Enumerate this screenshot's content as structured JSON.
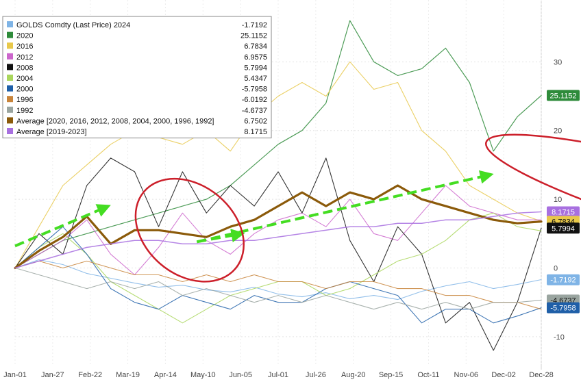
{
  "chart_data": {
    "type": "line",
    "title": "",
    "xlabel": "",
    "ylabel": "",
    "ylim": [
      -14,
      39
    ],
    "y_ticks": [
      30,
      20,
      10,
      0,
      -10
    ],
    "x_ticks": [
      "Jan-01",
      "Jan-27",
      "Feb-22",
      "Mar-19",
      "Apr-14",
      "May-10",
      "Jun-05",
      "Jul-01",
      "Jul-26",
      "Aug-20",
      "Sep-15",
      "Oct-11",
      "Nov-06",
      "Dec-02",
      "Dec-28"
    ],
    "grid": true,
    "legend_position": "top-left",
    "series": [
      {
        "name": "GOLDS Comdty (Last Price) 2024",
        "last": "-1.7192",
        "color": "#7fb4e6",
        "width": 1.1,
        "values": [
          0,
          1.2,
          0.5,
          -0.8,
          -1.5,
          -2.2,
          -2.8,
          -2.5,
          -3.2,
          -3.5,
          -2.8,
          -3.8,
          -4.2,
          -3.6,
          -4.5,
          -4.0,
          -4.6,
          -3.4,
          -2.6,
          -2.0,
          -3.0,
          -2.4,
          -1.7
        ]
      },
      {
        "name": "2020",
        "last": "25.1152",
        "color": "#2e8b3a",
        "width": 1.2,
        "values": [
          0,
          2,
          4,
          5,
          6,
          7,
          8,
          9,
          10,
          12,
          15,
          18,
          20,
          24,
          36,
          30,
          28,
          29,
          32,
          27,
          17,
          22,
          25.1
        ]
      },
      {
        "name": "2016",
        "last": "6.7834",
        "color": "#e8c84a",
        "width": 1.1,
        "values": [
          0,
          6,
          12,
          15,
          18,
          20,
          19,
          18,
          20,
          17,
          22,
          25,
          27,
          25,
          30,
          26,
          27,
          20,
          17,
          12,
          10,
          8,
          6.8
        ]
      },
      {
        "name": "2012",
        "last": "6.9575",
        "color": "#cc66cc",
        "width": 1.1,
        "values": [
          0,
          2,
          4,
          7,
          2,
          -1,
          3,
          8,
          4,
          2,
          5,
          7,
          8,
          6,
          10,
          5,
          4,
          8,
          12,
          9,
          8,
          7,
          7.0
        ]
      },
      {
        "name": "2008",
        "last": "5.7994",
        "color": "#111111",
        "width": 1.1,
        "values": [
          0,
          5,
          2,
          12,
          16,
          14,
          6,
          14,
          8,
          12,
          9,
          14,
          8,
          16,
          4,
          -2,
          6,
          2,
          -8,
          -5,
          -12,
          -5,
          5.8
        ]
      },
      {
        "name": "2004",
        "last": "5.4347",
        "color": "#a9d65c",
        "width": 1.1,
        "values": [
          0,
          3,
          5,
          2,
          -2,
          -4,
          -6,
          -8,
          -6,
          -4,
          -3,
          -2,
          -2,
          -4,
          -3,
          -1,
          1,
          2,
          4,
          7,
          8,
          6,
          5.4
        ]
      },
      {
        "name": "2000",
        "last": "-5.7958",
        "color": "#1f5fa8",
        "width": 1.1,
        "values": [
          0,
          3,
          6,
          2,
          -3,
          -5,
          -6,
          -4,
          -5,
          -6,
          -4,
          -5,
          -5,
          -3,
          -2,
          -3,
          -4,
          -8,
          -6,
          -6,
          -8,
          -7,
          -5.8
        ]
      },
      {
        "name": "1996",
        "last": "-6.0192",
        "color": "#c8843a",
        "width": 1.1,
        "values": [
          0,
          1,
          0,
          1,
          0,
          -1,
          -1,
          -2,
          -1,
          -2,
          -1,
          -2,
          -2,
          -3,
          -2,
          -2,
          -3,
          -3,
          -4,
          -4,
          -5,
          -5,
          -6.0
        ]
      },
      {
        "name": "1992",
        "last": "-4.6737",
        "color": "#9aa5a0",
        "width": 1.1,
        "values": [
          0,
          -1,
          -2,
          -3,
          -2,
          -3,
          -2,
          -4,
          -3,
          -4,
          -5,
          -4,
          -5,
          -4,
          -5,
          -6,
          -5,
          -6,
          -5,
          -6,
          -5,
          -5,
          -4.7
        ]
      },
      {
        "name": "Average  [2020, 2016, 2012, 2008, 2004, 2000, 1996, 1992]",
        "last": "6.7502",
        "color": "#8b5a0a",
        "width": 3.2,
        "values": [
          0,
          2.5,
          4.5,
          7.5,
          3.5,
          5.5,
          5.5,
          5,
          4.5,
          6,
          7,
          9,
          11,
          9,
          11,
          10,
          12,
          10,
          9,
          8,
          7,
          6.5,
          6.75
        ]
      },
      {
        "name": "Average  [2019-2023]",
        "last": "8.1715",
        "color": "#a870e0",
        "width": 1.5,
        "values": [
          0,
          1,
          2,
          3,
          3.5,
          4,
          4,
          3.5,
          3.5,
          4,
          4,
          4.5,
          5,
          5.5,
          6,
          6,
          6.5,
          6.5,
          7,
          7,
          7.5,
          8,
          8.17
        ]
      }
    ],
    "right_labels": [
      {
        "text": "25.1152",
        "value": 25.1152,
        "color": "#2e8b3a",
        "fg": "#ffffff"
      },
      {
        "text": "8.1715",
        "value": 8.1715,
        "color": "#a870e0",
        "fg": "#ffffff"
      },
      {
        "text": "6.7834",
        "value": 6.7834,
        "color": "#e8c84a",
        "fg": "#111111"
      },
      {
        "text": "5.7994",
        "value": 5.7994,
        "color": "#111111",
        "fg": "#ffffff"
      },
      {
        "text": "-1.7192",
        "value": -1.7192,
        "color": "#7fb4e6",
        "fg": "#ffffff"
      },
      {
        "text": "-4.6737",
        "value": -4.6737,
        "color": "#9aa5a0",
        "fg": "#111111"
      },
      {
        "text": "-5.7958",
        "value": -5.7958,
        "color": "#1f5fa8",
        "fg": "#ffffff"
      }
    ],
    "annotations": [
      {
        "kind": "arrow",
        "color": "#44dd22",
        "from": [
          0,
          3.2
        ],
        "to": [
          3.9,
          9.0
        ]
      },
      {
        "kind": "arrow",
        "color": "#44dd22",
        "from": [
          7.6,
          3.8
        ],
        "to": [
          19.9,
          13.6
        ]
      },
      {
        "kind": "arrow",
        "color": "#44dd22",
        "from": [
          7.6,
          3.8
        ],
        "to": [
          9.5,
          5.0
        ]
      },
      {
        "kind": "ellipse",
        "color": "#cc1f2a",
        "center": [
          7.3,
          5.5
        ],
        "radius": [
          2.5,
          6.5
        ],
        "rotate": 40
      },
      {
        "kind": "ellipse",
        "color": "#cc1f2a",
        "center": [
          29.5,
          8.5
        ],
        "radius": [
          10.2,
          5.0
        ],
        "rotate": 16
      }
    ]
  }
}
